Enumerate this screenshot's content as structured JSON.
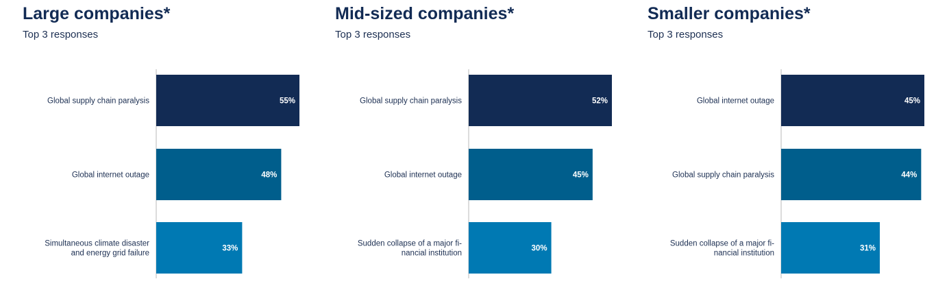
{
  "chart_data": [
    {
      "type": "bar",
      "orientation": "horizontal",
      "title": "Large companies*",
      "subtitle": "Top 3 responses",
      "categories": [
        "Global supply chain paralysis",
        "Global internet outage",
        "Simultaneous climate disaster and energy grid failure"
      ],
      "category_lines": [
        [
          "Global supply chain paralysis"
        ],
        [
          "Global internet outage"
        ],
        [
          "Simultaneous climate disaster",
          "and energy grid failure"
        ]
      ],
      "values": [
        55,
        48,
        33
      ],
      "value_labels": [
        "55%",
        "48%",
        "33%"
      ],
      "bar_colors": [
        "#122b54",
        "#005e8c",
        "#0079b3"
      ],
      "xlim": [
        0,
        55
      ]
    },
    {
      "type": "bar",
      "orientation": "horizontal",
      "title": "Mid-sized companies*",
      "subtitle": "Top 3 responses",
      "categories": [
        "Global supply chain paralysis",
        "Global internet outage",
        "Sudden collapse of a major financial institution"
      ],
      "category_lines": [
        [
          "Global supply chain paralysis"
        ],
        [
          "Global internet outage"
        ],
        [
          "Sudden collapse of a major fi-",
          "nancial institution"
        ]
      ],
      "values": [
        52,
        45,
        30
      ],
      "value_labels": [
        "52%",
        "45%",
        "30%"
      ],
      "bar_colors": [
        "#122b54",
        "#005e8c",
        "#0079b3"
      ],
      "xlim": [
        0,
        52
      ]
    },
    {
      "type": "bar",
      "orientation": "horizontal",
      "title": "Smaller companies*",
      "subtitle": "Top 3 responses",
      "categories": [
        "Global internet outage",
        "Global supply chain paralysis",
        "Sudden collapse of a major financial institution"
      ],
      "category_lines": [
        [
          "Global internet outage"
        ],
        [
          "Global supply chain paralysis"
        ],
        [
          "Sudden collapse of a major fi-",
          "nancial institution"
        ]
      ],
      "values": [
        45,
        44,
        31
      ],
      "value_labels": [
        "45%",
        "44%",
        "31%"
      ],
      "bar_colors": [
        "#122b54",
        "#005e8c",
        "#0079b3"
      ],
      "xlim": [
        0,
        45
      ]
    }
  ]
}
